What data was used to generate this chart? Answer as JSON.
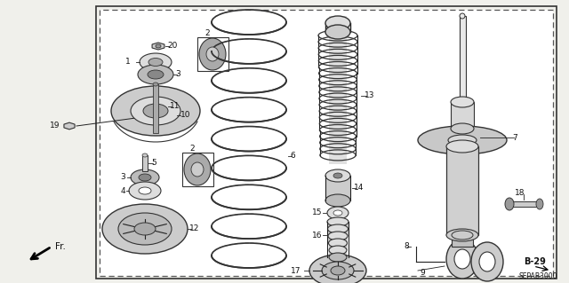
{
  "bg_color": "#f5f5f0",
  "border_dash": [
    4,
    3
  ],
  "fig_width": 6.4,
  "fig_height": 3.19,
  "dpi": 100,
  "label_B29": "B-29",
  "label_SEPAB": "SEPAB3000",
  "label_FR": "Fr."
}
